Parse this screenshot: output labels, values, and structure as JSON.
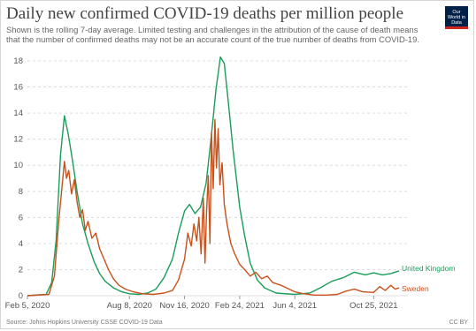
{
  "header": {
    "title": "Daily new confirmed COVID-19 deaths per million people",
    "subtitle": "Shown is the rolling 7-day average. Limited testing and challenges in the attribution of the cause of death means that the number of confirmed deaths may not be an accurate count of the true number of deaths from COVID-19.",
    "logo_text": "Our World in Data"
  },
  "footer": {
    "source": "Source: Johns Hopkins University CSSE COVID-19 Data",
    "license": "CC BY"
  },
  "colors": {
    "uk": "#1a9c5a",
    "sweden": "#c8511b",
    "grid": "#dddddd",
    "logo_bg": "#002147",
    "logo_bar": "#ce261e"
  },
  "chart_data": {
    "type": "line",
    "title": "Daily new confirmed COVID-19 deaths per million people",
    "xlabel": "",
    "ylabel": "",
    "x_ticks": [
      "Feb 5, 2020",
      "Aug 8, 2020",
      "Nov 16, 2020",
      "Feb 24, 2021",
      "Jun 4, 2021",
      "Oct 25, 2021"
    ],
    "x_range": [
      "2020-02-05",
      "2021-12-10"
    ],
    "y_ticks": [
      0,
      2,
      4,
      6,
      8,
      10,
      12,
      14,
      16,
      18
    ],
    "ylim": [
      0,
      18
    ],
    "grid": "horizontal dashed",
    "series": [
      {
        "name": "United Kingdom",
        "color": "#1a9c5a",
        "points": [
          [
            "2020-02-05",
            0
          ],
          [
            "2020-03-10",
            0.1
          ],
          [
            "2020-03-20",
            1.0
          ],
          [
            "2020-03-28",
            4.2
          ],
          [
            "2020-04-05",
            10.8
          ],
          [
            "2020-04-12",
            13.8
          ],
          [
            "2020-04-19",
            12.4
          ],
          [
            "2020-04-27",
            10.3
          ],
          [
            "2020-05-05",
            8.0
          ],
          [
            "2020-05-15",
            5.5
          ],
          [
            "2020-05-25",
            4.0
          ],
          [
            "2020-06-05",
            2.6
          ],
          [
            "2020-06-15",
            1.7
          ],
          [
            "2020-06-25",
            1.1
          ],
          [
            "2020-07-10",
            0.6
          ],
          [
            "2020-07-25",
            0.3
          ],
          [
            "2020-08-08",
            0.15
          ],
          [
            "2020-08-25",
            0.1
          ],
          [
            "2020-09-10",
            0.2
          ],
          [
            "2020-09-25",
            0.5
          ],
          [
            "2020-10-10",
            1.4
          ],
          [
            "2020-10-25",
            2.8
          ],
          [
            "2020-11-05",
            4.8
          ],
          [
            "2020-11-16",
            6.5
          ],
          [
            "2020-11-25",
            7.0
          ],
          [
            "2020-12-05",
            6.3
          ],
          [
            "2020-12-15",
            6.8
          ],
          [
            "2020-12-25",
            8.6
          ],
          [
            "2021-01-03",
            12.0
          ],
          [
            "2021-01-12",
            15.8
          ],
          [
            "2021-01-20",
            18.3
          ],
          [
            "2021-01-27",
            17.8
          ],
          [
            "2021-02-03",
            15.0
          ],
          [
            "2021-02-12",
            11.2
          ],
          [
            "2021-02-24",
            6.8
          ],
          [
            "2021-03-05",
            4.6
          ],
          [
            "2021-03-15",
            2.5
          ],
          [
            "2021-03-28",
            1.2
          ],
          [
            "2021-04-10",
            0.6
          ],
          [
            "2021-05-01",
            0.2
          ],
          [
            "2021-06-04",
            0.1
          ],
          [
            "2021-07-01",
            0.2
          ],
          [
            "2021-07-20",
            0.6
          ],
          [
            "2021-08-10",
            1.1
          ],
          [
            "2021-09-01",
            1.4
          ],
          [
            "2021-09-20",
            1.8
          ],
          [
            "2021-10-10",
            1.6
          ],
          [
            "2021-10-25",
            1.75
          ],
          [
            "2021-11-10",
            1.6
          ],
          [
            "2021-11-25",
            1.7
          ],
          [
            "2021-12-10",
            1.9
          ]
        ]
      },
      {
        "name": "Sweden",
        "color": "#c8511b",
        "points": [
          [
            "2020-02-05",
            0
          ],
          [
            "2020-03-15",
            0.1
          ],
          [
            "2020-03-25",
            1.5
          ],
          [
            "2020-04-02",
            5.8
          ],
          [
            "2020-04-08",
            8.5
          ],
          [
            "2020-04-12",
            10.3
          ],
          [
            "2020-04-16",
            9.0
          ],
          [
            "2020-04-20",
            9.6
          ],
          [
            "2020-04-25",
            7.8
          ],
          [
            "2020-04-30",
            8.9
          ],
          [
            "2020-05-05",
            7.2
          ],
          [
            "2020-05-10",
            6.0
          ],
          [
            "2020-05-15",
            6.6
          ],
          [
            "2020-05-20",
            5.0
          ],
          [
            "2020-05-25",
            5.7
          ],
          [
            "2020-06-01",
            4.4
          ],
          [
            "2020-06-08",
            4.8
          ],
          [
            "2020-06-15",
            3.6
          ],
          [
            "2020-06-22",
            2.9
          ],
          [
            "2020-07-01",
            2.0
          ],
          [
            "2020-07-10",
            1.3
          ],
          [
            "2020-07-20",
            0.8
          ],
          [
            "2020-08-01",
            0.5
          ],
          [
            "2020-08-15",
            0.3
          ],
          [
            "2020-09-01",
            0.15
          ],
          [
            "2020-09-20",
            0.1
          ],
          [
            "2020-10-10",
            0.2
          ],
          [
            "2020-10-25",
            0.4
          ],
          [
            "2020-11-05",
            1.2
          ],
          [
            "2020-11-16",
            2.8
          ],
          [
            "2020-11-22",
            4.8
          ],
          [
            "2020-11-28",
            3.8
          ],
          [
            "2020-12-03",
            5.5
          ],
          [
            "2020-12-08",
            4.2
          ],
          [
            "2020-12-12",
            6.0
          ],
          [
            "2020-12-16",
            3.2
          ],
          [
            "2020-12-20",
            7.5
          ],
          [
            "2020-12-23",
            2.5
          ],
          [
            "2020-12-26",
            6.5
          ],
          [
            "2020-12-29",
            9.2
          ],
          [
            "2021-01-01",
            4.0
          ],
          [
            "2021-01-04",
            12.5
          ],
          [
            "2021-01-07",
            8.2
          ],
          [
            "2021-01-10",
            13.5
          ],
          [
            "2021-01-13",
            9.8
          ],
          [
            "2021-01-16",
            12.8
          ],
          [
            "2021-01-19",
            8.5
          ],
          [
            "2021-01-23",
            10.2
          ],
          [
            "2021-01-27",
            7.0
          ],
          [
            "2021-02-01",
            5.5
          ],
          [
            "2021-02-08",
            4.0
          ],
          [
            "2021-02-15",
            3.2
          ],
          [
            "2021-02-24",
            2.4
          ],
          [
            "2021-03-05",
            2.0
          ],
          [
            "2021-03-15",
            1.5
          ],
          [
            "2021-03-25",
            1.8
          ],
          [
            "2021-04-05",
            1.3
          ],
          [
            "2021-04-15",
            1.5
          ],
          [
            "2021-04-25",
            1.0
          ],
          [
            "2021-05-10",
            0.8
          ],
          [
            "2021-05-25",
            0.5
          ],
          [
            "2021-06-04",
            0.3
          ],
          [
            "2021-06-20",
            0.15
          ],
          [
            "2021-07-10",
            0.05
          ],
          [
            "2021-08-01",
            0.05
          ],
          [
            "2021-08-20",
            0.1
          ],
          [
            "2021-09-05",
            0.35
          ],
          [
            "2021-09-20",
            0.5
          ],
          [
            "2021-10-05",
            0.3
          ],
          [
            "2021-10-25",
            0.25
          ],
          [
            "2021-11-05",
            0.7
          ],
          [
            "2021-11-15",
            0.4
          ],
          [
            "2021-11-25",
            0.8
          ],
          [
            "2021-12-03",
            0.5
          ],
          [
            "2021-12-10",
            0.6
          ]
        ]
      }
    ]
  }
}
